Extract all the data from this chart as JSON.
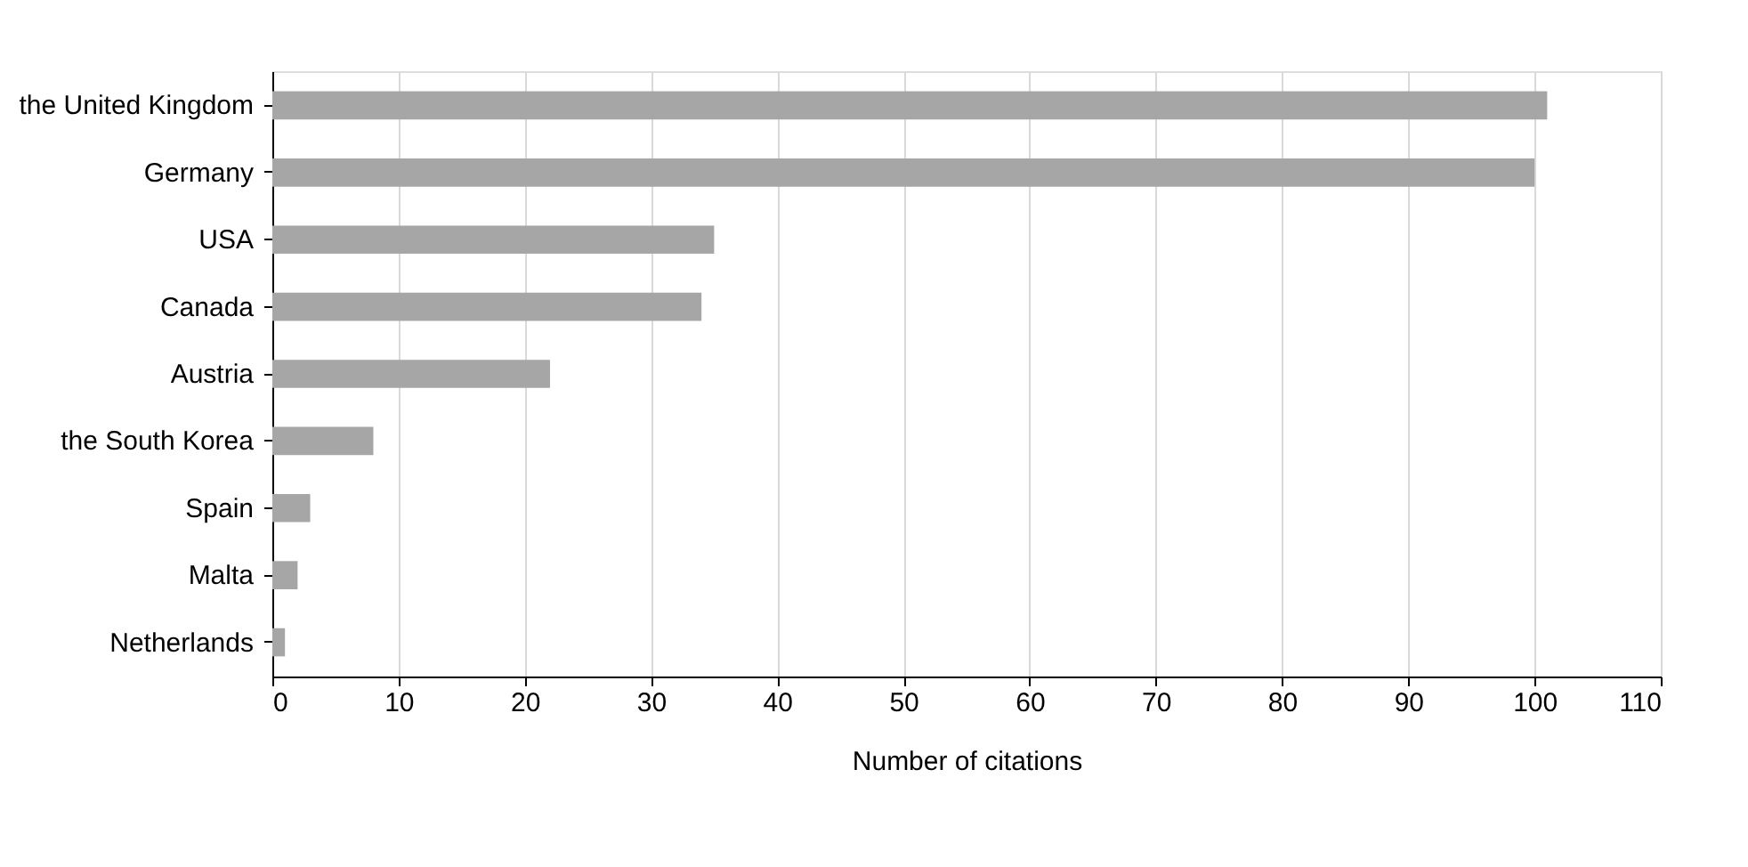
{
  "chart_data": {
    "type": "bar",
    "orientation": "horizontal",
    "xlabel": "Number of citations",
    "categories": [
      "the United Kingdom",
      "Germany",
      "USA",
      "Canada",
      "Austria",
      "the South Korea",
      "Spain",
      "Malta",
      "Netherlands"
    ],
    "values": [
      101,
      100,
      35,
      34,
      22,
      8,
      3,
      2,
      1
    ],
    "color": "#a6a6a6",
    "xlim": [
      0,
      110
    ],
    "xticks": [
      0,
      10,
      20,
      30,
      40,
      50,
      60,
      70,
      80,
      90,
      100,
      110
    ],
    "grid": "x"
  }
}
